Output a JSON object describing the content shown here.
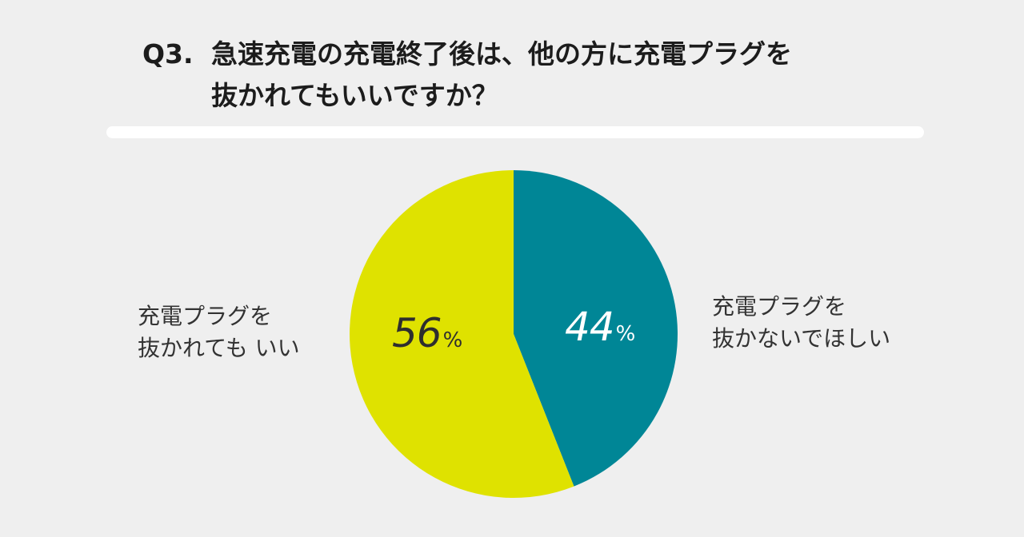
{
  "title": {
    "q": "Q3.",
    "line1": "急速充電の充電終了後は、他の方に充電プラグを",
    "line2": "抜かれてもいいですか？"
  },
  "chart_data": {
    "type": "pie",
    "slices": [
      {
        "label_line1": "充電プラグを",
        "label_line2": "抜かないでほしい",
        "value": 44,
        "value_text": "44",
        "unit": "%",
        "color": "#008696"
      },
      {
        "label_line1": "充電プラグを",
        "label_line2": "抜かれても いい",
        "value": 56,
        "value_text": "56",
        "unit": "%",
        "color": "#dfe200"
      }
    ]
  }
}
